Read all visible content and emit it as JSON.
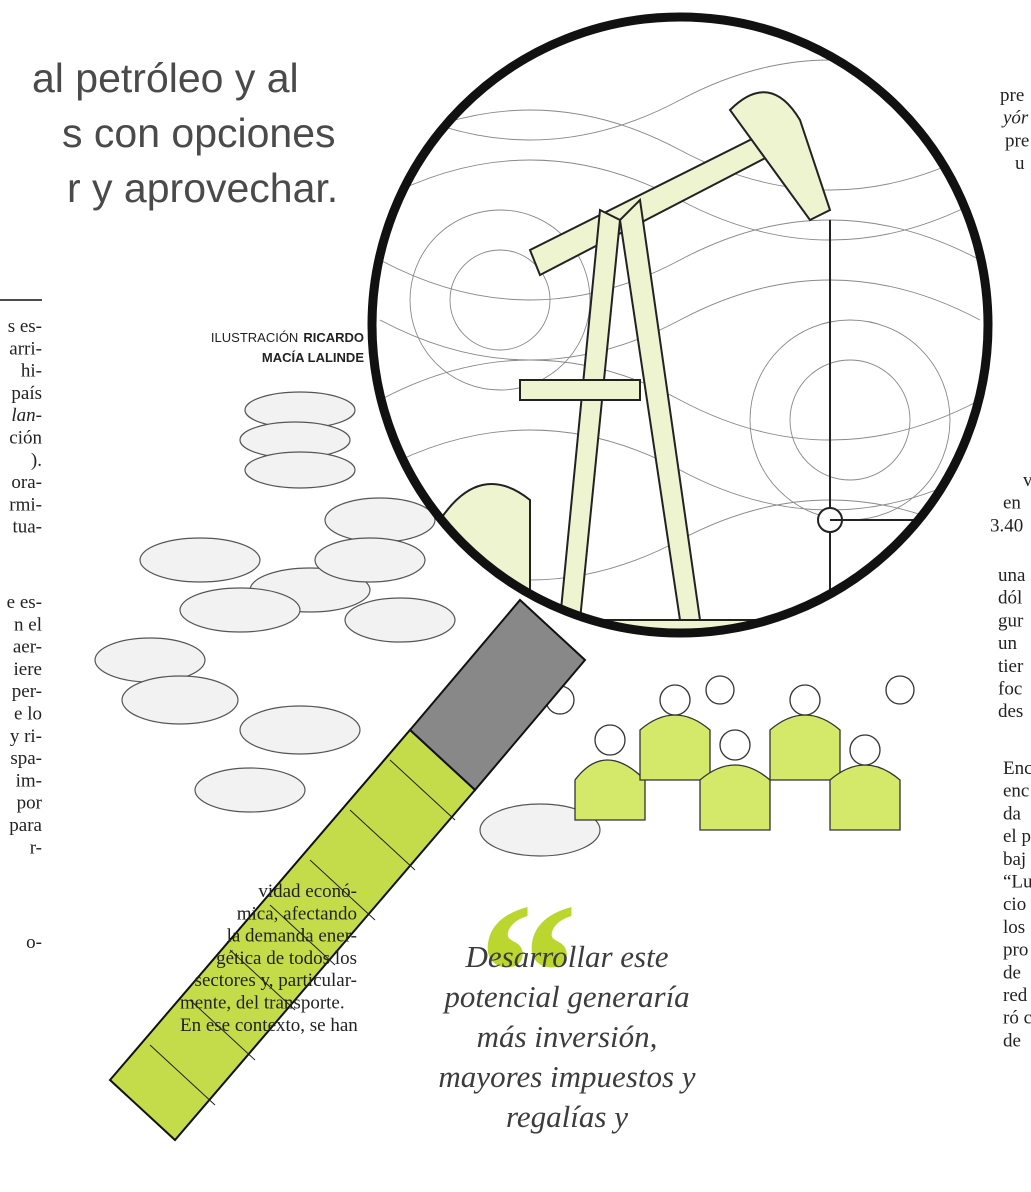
{
  "headline": {
    "lines": [
      "al petróleo y al",
      "s con opciones",
      "r y aprovechar."
    ]
  },
  "credit": {
    "label": "ILUSTRACIÓN",
    "name_lines": [
      "RICARDO",
      "MACÍA LALINDE"
    ]
  },
  "left_column": {
    "blocks": [
      [
        "s es-",
        "arri-",
        "hi-",
        "país",
        "lan-",
        "ción",
        ").",
        "ora-",
        "rmi-",
        "tua-"
      ],
      [
        "e es-",
        "n el",
        "aer-",
        "iere",
        "per-",
        "e lo",
        "y ri-",
        "spa-",
        "im-",
        "por",
        "para",
        "r-"
      ],
      [
        "o-"
      ]
    ]
  },
  "middle_column": {
    "lines": [
      "vidad econó-",
      "mica, afectando",
      "la demanda ener-",
      "gética de todos los",
      "sectores y, particular-",
      "mente, del transporte.",
      "En ese contexto, se han"
    ]
  },
  "pull_quote": {
    "lines": [
      "Desarrollar este",
      "potencial generaría",
      "más inversión,",
      "mayores impuestos y",
      "regalías y"
    ]
  },
  "right_column": {
    "blocks": [
      [
        "pre",
        "yór",
        "pre",
        "u"
      ],
      [
        "v",
        "en",
        "3.40"
      ],
      [
        "una",
        "dól",
        "gur",
        "un",
        "tier",
        "foc",
        "des"
      ],
      [
        "Enc",
        "enc",
        "da",
        "el p",
        "baj",
        "“Lu",
        "cio",
        "los",
        "pro",
        "de",
        "red",
        "ró c",
        "de"
      ]
    ]
  }
}
